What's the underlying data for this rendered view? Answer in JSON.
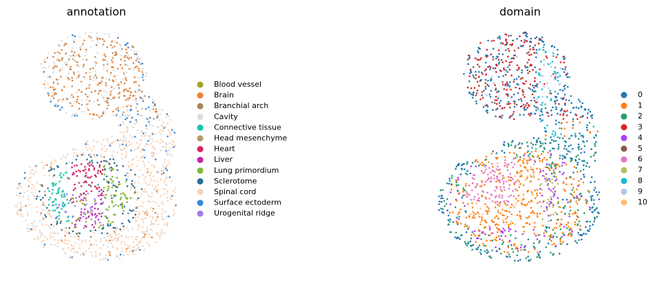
{
  "chart_data": [
    {
      "type": "scatter",
      "title": "annotation",
      "series": [
        {
          "name": "Blood vessel",
          "color": "#a8a226"
        },
        {
          "name": "Brain",
          "color": "#e8843a"
        },
        {
          "name": "Branchial arch",
          "color": "#a8845a"
        },
        {
          "name": "Cavity",
          "color": "#dcdcdc"
        },
        {
          "name": "Connective tissue",
          "color": "#18c8a8"
        },
        {
          "name": "Head mesenchyme",
          "color": "#b89a70"
        },
        {
          "name": "Heart",
          "color": "#d4265a"
        },
        {
          "name": "Liver",
          "color": "#c026a8"
        },
        {
          "name": "Lung primordium",
          "color": "#7cbb36"
        },
        {
          "name": "Sclerotome",
          "color": "#2a6e9a"
        },
        {
          "name": "Spinal cord",
          "color": "#fad4b8"
        },
        {
          "name": "Surface ectoderm",
          "color": "#3a88d8"
        },
        {
          "name": "Urogenital ridge",
          "color": "#a07af0"
        }
      ]
    },
    {
      "type": "scatter",
      "title": "domain",
      "series": [
        {
          "name": "0",
          "color": "#1f77b4"
        },
        {
          "name": "1",
          "color": "#ff7f0e"
        },
        {
          "name": "2",
          "color": "#279e68"
        },
        {
          "name": "3",
          "color": "#d62728"
        },
        {
          "name": "4",
          "color": "#aa40fc"
        },
        {
          "name": "5",
          "color": "#8c564b"
        },
        {
          "name": "6",
          "color": "#e377c2"
        },
        {
          "name": "7",
          "color": "#b5bd61"
        },
        {
          "name": "8",
          "color": "#17becf"
        },
        {
          "name": "9",
          "color": "#aec7e8"
        },
        {
          "name": "10",
          "color": "#ffbb78"
        }
      ]
    }
  ]
}
